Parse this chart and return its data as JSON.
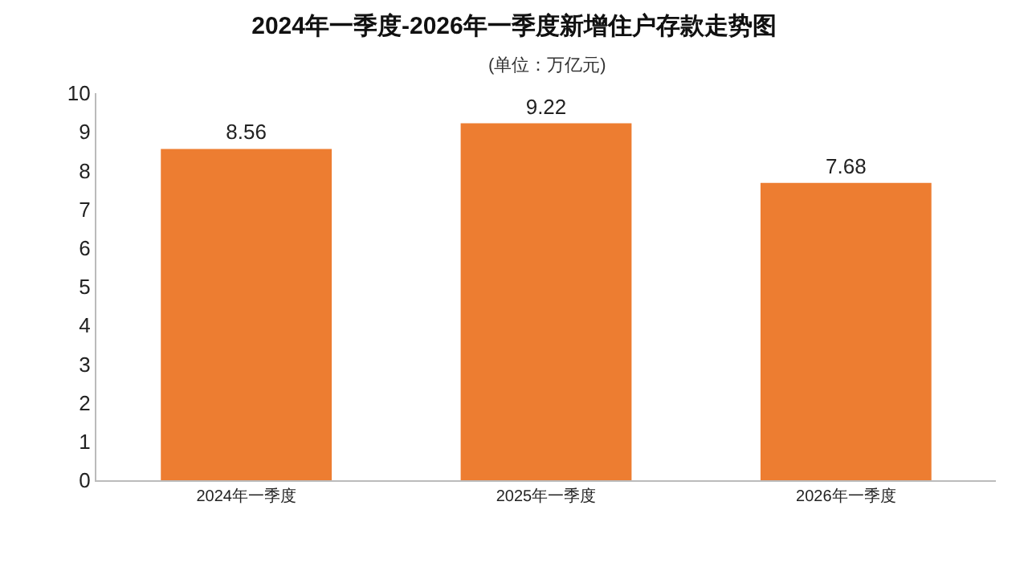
{
  "chart_data": {
    "type": "bar",
    "title": "2024年一季度-2026年一季度新增住户存款走势图",
    "subtitle": "(单位：万亿元)",
    "categories": [
      "2024年一季度",
      "2025年一季度",
      "2026年一季度"
    ],
    "values": [
      8.56,
      9.22,
      7.68
    ],
    "color": "#ed7d31",
    "ylim": [
      0,
      10
    ],
    "yticks": [
      0,
      1,
      2,
      3,
      4,
      5,
      6,
      7,
      8,
      9,
      10
    ],
    "grid": false,
    "data_labels": true
  }
}
